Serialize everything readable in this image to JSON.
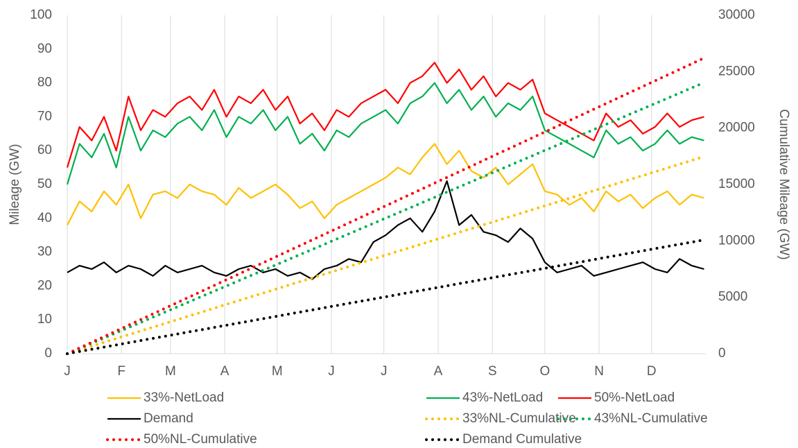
{
  "chart_data": {
    "type": "line",
    "y_label": "Mileage (GW)",
    "y2_label": "Cumulative Mileage (GW)",
    "grid": "x",
    "legend": "bottom",
    "xlim": [
      0,
      365
    ],
    "xticks": [
      {
        "value": 0,
        "label": "J"
      },
      {
        "value": 31,
        "label": "F"
      },
      {
        "value": 59,
        "label": "M"
      },
      {
        "value": 90,
        "label": "A"
      },
      {
        "value": 120,
        "label": "M"
      },
      {
        "value": 151,
        "label": "J"
      },
      {
        "value": 181,
        "label": "J"
      },
      {
        "value": 212,
        "label": "A"
      },
      {
        "value": 243,
        "label": "S"
      },
      {
        "value": 273,
        "label": "O"
      },
      {
        "value": 304,
        "label": "N"
      },
      {
        "value": 334,
        "label": "D"
      }
    ],
    "ylim": [
      0,
      100
    ],
    "yticks": [
      0,
      10,
      20,
      30,
      40,
      50,
      60,
      70,
      80,
      90,
      100
    ],
    "y2lim": [
      0,
      30000
    ],
    "y2ticks": [
      0,
      5000,
      10000,
      15000,
      20000,
      25000,
      30000
    ],
    "x": [
      0,
      7,
      14,
      21,
      28,
      35,
      42,
      49,
      56,
      63,
      70,
      77,
      84,
      91,
      98,
      105,
      112,
      119,
      126,
      133,
      140,
      147,
      154,
      161,
      168,
      175,
      182,
      189,
      196,
      203,
      210,
      217,
      224,
      231,
      238,
      245,
      252,
      259,
      266,
      273,
      280,
      287,
      294,
      301,
      308,
      315,
      322,
      329,
      336,
      343,
      350,
      357,
      364
    ],
    "series": [
      {
        "name": "33%-NetLoad",
        "color": "#ffc000",
        "dotted": false,
        "values": [
          38,
          45,
          42,
          48,
          44,
          50,
          40,
          47,
          48,
          46,
          50,
          48,
          47,
          44,
          49,
          46,
          48,
          50,
          47,
          43,
          45,
          40,
          44,
          46,
          48,
          50,
          52,
          55,
          53,
          58,
          62,
          56,
          60,
          54,
          52,
          55,
          50,
          53,
          56,
          48,
          47,
          44,
          46,
          42,
          48,
          45,
          47,
          43,
          46,
          48,
          44,
          47,
          46
        ]
      },
      {
        "name": "43%-NetLoad",
        "color": "#00b050",
        "dotted": false,
        "values": [
          50,
          62,
          58,
          65,
          55,
          70,
          60,
          66,
          64,
          68,
          70,
          66,
          72,
          64,
          70,
          68,
          72,
          66,
          70,
          62,
          65,
          60,
          66,
          64,
          68,
          70,
          72,
          68,
          74,
          76,
          80,
          74,
          78,
          72,
          76,
          70,
          74,
          72,
          76,
          66,
          64,
          62,
          60,
          58,
          66,
          62,
          64,
          60,
          62,
          66,
          62,
          64,
          63
        ]
      },
      {
        "name": "50%-NetLoad",
        "color": "#ff0000",
        "dotted": false,
        "values": [
          55,
          67,
          63,
          70,
          60,
          76,
          66,
          72,
          70,
          74,
          76,
          72,
          78,
          70,
          76,
          74,
          78,
          72,
          76,
          68,
          71,
          66,
          72,
          70,
          74,
          76,
          78,
          74,
          80,
          82,
          86,
          80,
          84,
          78,
          82,
          76,
          80,
          78,
          81,
          71,
          69,
          67,
          65,
          63,
          71,
          67,
          69,
          65,
          67,
          71,
          67,
          69,
          70
        ]
      },
      {
        "name": "Demand",
        "color": "#000000",
        "dotted": false,
        "values": [
          24,
          26,
          25,
          27,
          24,
          26,
          25,
          23,
          26,
          24,
          25,
          26,
          24,
          23,
          25,
          26,
          24,
          25,
          23,
          24,
          22,
          25,
          26,
          28,
          27,
          33,
          35,
          38,
          40,
          36,
          42,
          51,
          38,
          41,
          36,
          35,
          33,
          37,
          34,
          27,
          24,
          25,
          26,
          23,
          24,
          25,
          26,
          27,
          25,
          24,
          28,
          26,
          25
        ]
      },
      {
        "name": "33%NL-Cumulative",
        "color": "#ffc000",
        "dotted": true,
        "axis": "y2",
        "values": [
          0,
          336,
          672,
          1008,
          1344,
          1680,
          2016,
          2352,
          2688,
          3024,
          3360,
          3696,
          4032,
          4368,
          4704,
          5040,
          5376,
          5712,
          6048,
          6384,
          6720,
          7056,
          7392,
          7728,
          8064,
          8400,
          8736,
          9072,
          9408,
          9744,
          10080,
          10416,
          10752,
          11088,
          11424,
          11760,
          12096,
          12432,
          12768,
          13104,
          13440,
          13776,
          14112,
          14448,
          14784,
          15120,
          15456,
          15792,
          16128,
          16464,
          16800,
          17136,
          17472
        ]
      },
      {
        "name": "43%NL-Cumulative",
        "color": "#00b050",
        "dotted": true,
        "axis": "y2",
        "values": [
          0,
          462,
          924,
          1386,
          1848,
          2310,
          2772,
          3234,
          3696,
          4158,
          4620,
          5082,
          5544,
          6006,
          6468,
          6930,
          7392,
          7854,
          8316,
          8778,
          9240,
          9702,
          10164,
          10626,
          11088,
          11550,
          12012,
          12474,
          12936,
          13398,
          13860,
          14322,
          14784,
          15246,
          15708,
          16170,
          16632,
          17094,
          17556,
          18018,
          18480,
          18942,
          19404,
          19866,
          20328,
          20790,
          21252,
          21714,
          22176,
          22638,
          23100,
          23562,
          24024
        ]
      },
      {
        "name": "50%NL-Cumulative",
        "color": "#ff0000",
        "dotted": true,
        "axis": "y2",
        "values": [
          0,
          504,
          1008,
          1512,
          2016,
          2520,
          3024,
          3528,
          4032,
          4536,
          5040,
          5544,
          6048,
          6552,
          7056,
          7560,
          8064,
          8568,
          9072,
          9576,
          10080,
          10584,
          11088,
          11592,
          12096,
          12600,
          13104,
          13608,
          14112,
          14616,
          15120,
          15624,
          16128,
          16632,
          17136,
          17640,
          18144,
          18648,
          19152,
          19656,
          20160,
          20664,
          21168,
          21672,
          22176,
          22680,
          23184,
          23688,
          24192,
          24696,
          25200,
          25704,
          26208
        ]
      },
      {
        "name": "Demand Cumulative",
        "color": "#000000",
        "dotted": true,
        "axis": "y2",
        "values": [
          0,
          194,
          388,
          582,
          776,
          970,
          1164,
          1358,
          1552,
          1746,
          1940,
          2134,
          2328,
          2522,
          2716,
          2910,
          3104,
          3298,
          3492,
          3686,
          3880,
          4074,
          4268,
          4462,
          4656,
          4850,
          5044,
          5238,
          5432,
          5626,
          5820,
          6014,
          6208,
          6402,
          6596,
          6790,
          6984,
          7178,
          7372,
          7566,
          7760,
          7954,
          8148,
          8342,
          8536,
          8730,
          8924,
          9118,
          9312,
          9506,
          9700,
          9894,
          10088
        ]
      }
    ]
  }
}
